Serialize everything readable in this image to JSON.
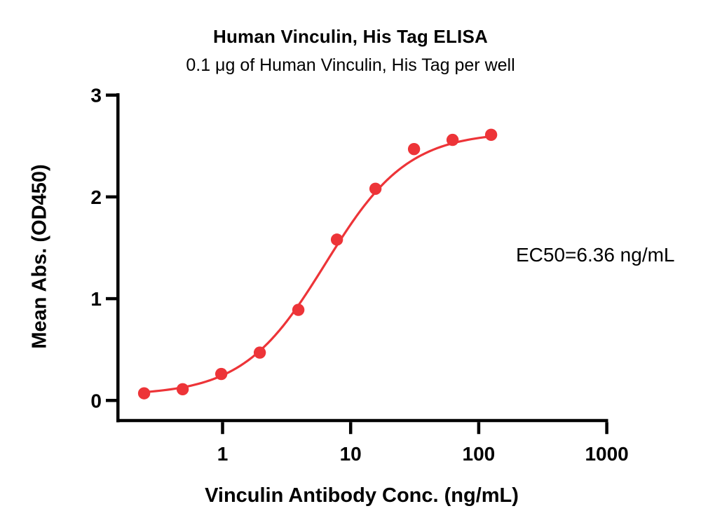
{
  "chart_data": {
    "type": "scatter",
    "title": "Human Vinculin, His Tag ELISA",
    "subtitle": "0.1 μg of Human Vinculin, His Tag per well",
    "xlabel": "Vinculin Antibody Conc. (ng/mL)",
    "ylabel": "Mean Abs. (OD450)",
    "annotation": "EC50=6.36 ng/mL",
    "x_scale": "log10",
    "grid": false,
    "legend": "none",
    "x_ticks": [
      "1",
      "10",
      "100",
      "1000"
    ],
    "x_tick_values": [
      1,
      10,
      100,
      1000
    ],
    "y_ticks": [
      "0",
      "1",
      "2",
      "3"
    ],
    "y_tick_values": [
      0,
      1,
      2,
      3
    ],
    "ylim": [
      0,
      3
    ],
    "series": [
      {
        "name": "Human Vinculin, His Tag",
        "x": [
          0.244,
          0.488,
          0.977,
          1.953,
          3.906,
          7.813,
          15.625,
          31.25,
          62.5,
          125
        ],
        "y": [
          0.07,
          0.11,
          0.26,
          0.47,
          0.89,
          1.58,
          2.08,
          2.47,
          2.56,
          2.61
        ],
        "marker": "filled-circle",
        "fit_4pl": {
          "bottom": 0.05,
          "top": 2.64,
          "ec50": 6.36,
          "hill": 1.35
        }
      }
    ],
    "ec50_ng_ml": 6.36,
    "colors": {
      "curve": "#ED3438",
      "marker": "#ED3438",
      "axis": "#000000",
      "text": "#000000",
      "background": "#FFFFFF"
    }
  }
}
